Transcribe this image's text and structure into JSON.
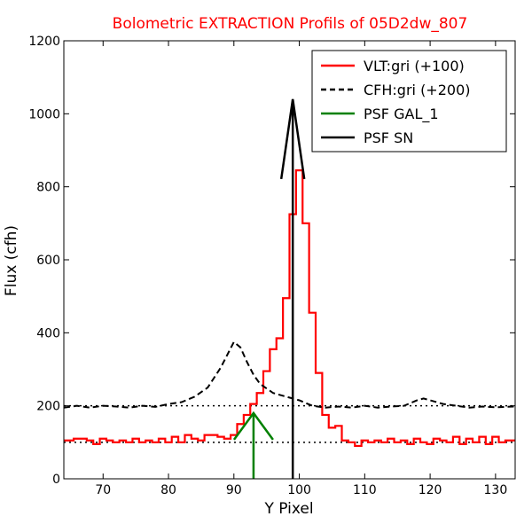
{
  "chart_data": {
    "type": "line",
    "title": "Bolometric EXTRACTION Profils of 05D2dw_807",
    "xlabel": "Y Pixel",
    "ylabel": "Flux (cfh)",
    "xlim": [
      64,
      133
    ],
    "ylim": [
      0,
      1200
    ],
    "xticks": [
      70,
      80,
      90,
      100,
      110,
      120,
      130
    ],
    "yticks": [
      0,
      200,
      400,
      600,
      800,
      1000,
      1200
    ],
    "grid": false,
    "legend_position": "top-right",
    "baselines": [
      {
        "y": 100,
        "style": "dotted",
        "color": "#000000"
      },
      {
        "y": 200,
        "style": "dotted",
        "color": "#000000"
      }
    ],
    "series": [
      {
        "name": "VLT:gri (+100)",
        "style": "step",
        "color": "#ff0000",
        "x": [
          64,
          65,
          66,
          67,
          68,
          69,
          70,
          71,
          72,
          73,
          74,
          75,
          76,
          77,
          78,
          79,
          80,
          81,
          82,
          83,
          84,
          85,
          86,
          87,
          88,
          89,
          90,
          91,
          92,
          93,
          94,
          95,
          96,
          97,
          98,
          99,
          100,
          101,
          102,
          103,
          104,
          105,
          106,
          107,
          108,
          109,
          110,
          111,
          112,
          113,
          114,
          115,
          116,
          117,
          118,
          119,
          120,
          121,
          122,
          123,
          124,
          125,
          126,
          127,
          128,
          129,
          130,
          131,
          132,
          133
        ],
        "values": [
          105,
          105,
          110,
          110,
          105,
          95,
          110,
          105,
          100,
          105,
          100,
          110,
          100,
          105,
          100,
          110,
          100,
          115,
          100,
          120,
          110,
          105,
          120,
          120,
          115,
          110,
          120,
          150,
          175,
          205,
          235,
          295,
          355,
          385,
          495,
          725,
          845,
          700,
          455,
          290,
          175,
          140,
          145,
          105,
          100,
          90,
          105,
          100,
          105,
          100,
          110,
          100,
          105,
          95,
          110,
          100,
          95,
          110,
          105,
          100,
          115,
          95,
          110,
          100,
          115,
          95,
          115,
          100,
          105,
          105
        ]
      },
      {
        "name": "CFH:gri (+200)",
        "style": "dashed",
        "color": "#000000",
        "x": [
          64,
          66,
          68,
          70,
          72,
          74,
          76,
          78,
          80,
          82,
          84,
          86,
          88,
          89,
          90,
          91,
          92,
          93,
          94,
          96,
          98,
          100,
          102,
          104,
          106,
          108,
          110,
          112,
          114,
          116,
          118,
          119,
          120,
          122,
          124,
          126,
          128,
          130,
          133
        ],
        "values": [
          195,
          200,
          195,
          200,
          198,
          195,
          200,
          197,
          205,
          210,
          225,
          250,
          305,
          340,
          375,
          360,
          320,
          285,
          260,
          235,
          225,
          215,
          200,
          195,
          198,
          195,
          200,
          195,
          198,
          200,
          215,
          220,
          215,
          205,
          200,
          195,
          198,
          196,
          198
        ]
      },
      {
        "name": "PSF GAL_1",
        "style": "arrow",
        "color": "#008000",
        "x": [
          93
        ],
        "values": [
          180
        ]
      },
      {
        "name": "PSF SN",
        "style": "arrow",
        "color": "#000000",
        "x": [
          99
        ],
        "values": [
          1040
        ]
      }
    ]
  }
}
